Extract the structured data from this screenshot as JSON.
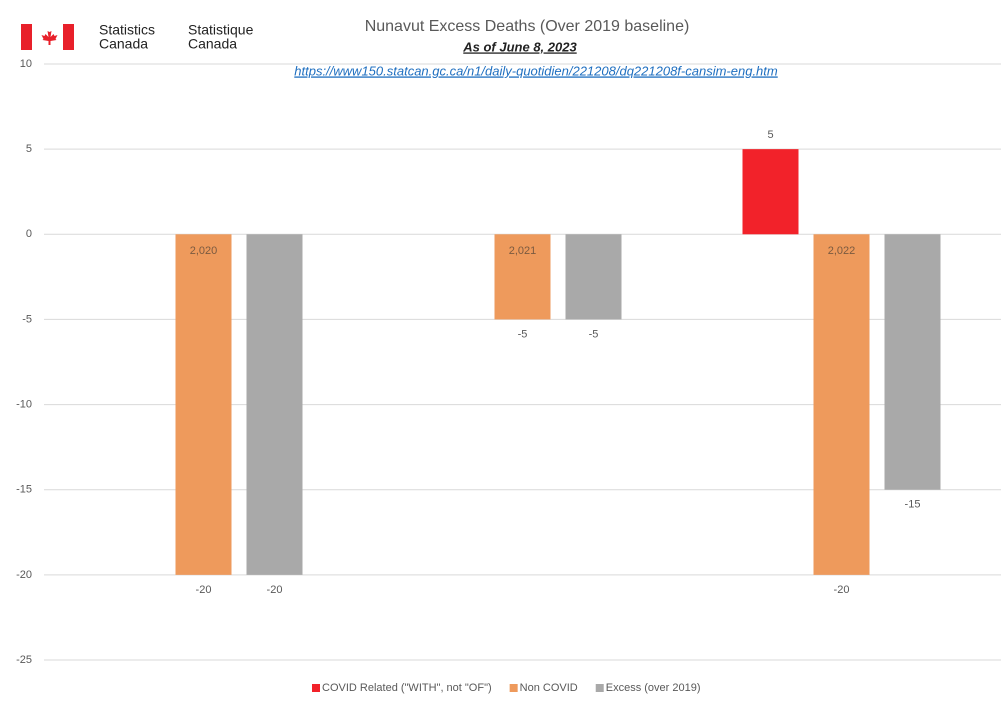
{
  "logo": {
    "en": [
      "Statistics",
      "Canada"
    ],
    "fr": [
      "Statistique",
      "Canada"
    ]
  },
  "chart_data": {
    "type": "bar",
    "title": "Nunavut Excess Deaths (Over 2019 baseline)",
    "subtitle": "As of June 8, 2023",
    "source_url": "https://www150.statcan.gc.ca/n1/daily-quotidien/221208/dq221208f-cansim-eng.htm",
    "categories": [
      "2,020",
      "2,021",
      "2,022"
    ],
    "series": [
      {
        "name": "COVID Related (\"WITH\", not \"OF\")",
        "color": "#f2222a",
        "values": [
          0,
          0,
          5
        ],
        "value_labels": [
          null,
          null,
          "5"
        ]
      },
      {
        "name": "Non COVID",
        "color": "#ee9a5c",
        "values": [
          -20,
          -5,
          -20
        ]
      },
      {
        "name": "Excess (over 2019)",
        "color": "#a9a9a9",
        "values": [
          -20,
          -5,
          -15
        ]
      }
    ],
    "ylim": [
      -25,
      10
    ],
    "yticks": [
      -25,
      -20,
      -15,
      -10,
      -5,
      0,
      5,
      10
    ],
    "grid": true,
    "legend": "bottom"
  }
}
